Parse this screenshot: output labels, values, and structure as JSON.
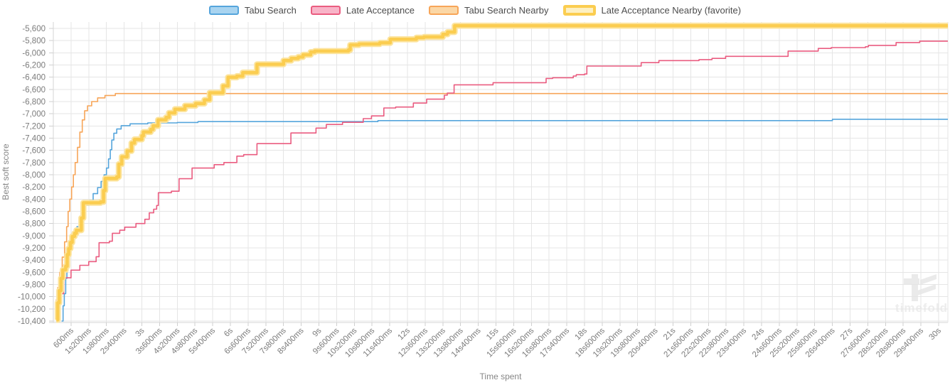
{
  "watermark": {
    "text": "timefold"
  },
  "chart_data": {
    "type": "line",
    "step_mode": "after",
    "title": "",
    "xlabel": "Time spent",
    "ylabel": "Best soft score",
    "legend_position": "top",
    "grid": true,
    "x_axis": {
      "min_s": 0,
      "max_s": 30,
      "tick_interval_s": 0.6,
      "tick_labels": [
        "600ms",
        "1s200ms",
        "1s800ms",
        "2s400ms",
        "3s",
        "3s600ms",
        "4s200ms",
        "4s800ms",
        "5s400ms",
        "6s",
        "6s600ms",
        "7s200ms",
        "7s800ms",
        "8s400ms",
        "9s",
        "9s600ms",
        "10s200ms",
        "10s800ms",
        "11s400ms",
        "12s",
        "12s600ms",
        "13s200ms",
        "13s800ms",
        "14s400ms",
        "15s",
        "15s600ms",
        "16s200ms",
        "16s800ms",
        "17s400ms",
        "18s",
        "18s600ms",
        "19s200ms",
        "19s800ms",
        "20s400ms",
        "21s",
        "21s600ms",
        "22s200ms",
        "22s800ms",
        "23s400ms",
        "24s",
        "24s600ms",
        "25s200ms",
        "25s800ms",
        "26s400ms",
        "27s",
        "27s600ms",
        "28s200ms",
        "28s800ms",
        "29s400ms",
        "30s"
      ]
    },
    "y_axis": {
      "min": -10400,
      "max": -5600,
      "tick_step": 200,
      "tick_labels": [
        "-5,600",
        "-5,800",
        "-6,000",
        "-6,200",
        "-6,400",
        "-6,600",
        "-6,800",
        "-7,000",
        "-7,200",
        "-7,400",
        "-7,600",
        "-7,800",
        "-8,000",
        "-8,200",
        "-8,400",
        "-8,600",
        "-8,800",
        "-9,000",
        "-9,200",
        "-9,400",
        "-9,600",
        "-9,800",
        "-10,000",
        "-10,200",
        "-10,400"
      ]
    },
    "grid_color": "#e5e5e5",
    "axis_border_color": "#d6d6d6",
    "series": [
      {
        "name": "Tabu Search",
        "color": "#55a5dc",
        "fill": "#a9d4f0",
        "width": 1.6,
        "favorite": false,
        "points": [
          [
            0.28,
            -10400
          ],
          [
            0.33,
            -10150
          ],
          [
            0.37,
            -9950
          ],
          [
            0.42,
            -9700
          ],
          [
            0.46,
            -9450
          ],
          [
            0.5,
            -9250
          ],
          [
            0.55,
            -9150
          ],
          [
            0.62,
            -9050
          ],
          [
            0.7,
            -8950
          ],
          [
            0.8,
            -8850
          ],
          [
            0.9,
            -8720
          ],
          [
            1.0,
            -8600
          ],
          [
            1.1,
            -8500
          ],
          [
            1.22,
            -8420
          ],
          [
            1.35,
            -8310
          ],
          [
            1.5,
            -8210
          ],
          [
            1.62,
            -8110
          ],
          [
            1.72,
            -8000
          ],
          [
            1.8,
            -7890
          ],
          [
            1.87,
            -7740
          ],
          [
            1.93,
            -7590
          ],
          [
            1.98,
            -7430
          ],
          [
            2.05,
            -7320
          ],
          [
            2.15,
            -7250
          ],
          [
            2.3,
            -7195
          ],
          [
            2.6,
            -7165
          ],
          [
            3.2,
            -7150
          ],
          [
            4.2,
            -7142
          ],
          [
            4.9,
            -7128
          ],
          [
            11.0,
            -7112
          ],
          [
            26.4,
            -7090
          ]
        ]
      },
      {
        "name": "Late Acceptance",
        "color": "#ea5c80",
        "fill": "#f8b4c8",
        "width": 1.6,
        "favorite": false,
        "points": [
          [
            0.12,
            -10350
          ],
          [
            0.17,
            -10060
          ],
          [
            0.24,
            -9950
          ],
          [
            0.35,
            -9690
          ],
          [
            0.6,
            -9565
          ],
          [
            0.9,
            -9485
          ],
          [
            1.2,
            -9425
          ],
          [
            1.45,
            -9345
          ],
          [
            1.55,
            -9115
          ],
          [
            1.9,
            -9090
          ],
          [
            2.0,
            -8960
          ],
          [
            2.25,
            -8910
          ],
          [
            2.42,
            -8860
          ],
          [
            2.8,
            -8800
          ],
          [
            3.1,
            -8730
          ],
          [
            3.25,
            -8625
          ],
          [
            3.4,
            -8565
          ],
          [
            3.5,
            -8505
          ],
          [
            3.56,
            -8295
          ],
          [
            4.0,
            -8270
          ],
          [
            4.26,
            -8065
          ],
          [
            4.7,
            -7890
          ],
          [
            5.45,
            -7835
          ],
          [
            5.78,
            -7800
          ],
          [
            6.22,
            -7695
          ],
          [
            6.45,
            -7670
          ],
          [
            6.9,
            -7490
          ],
          [
            8.05,
            -7315
          ],
          [
            8.9,
            -7235
          ],
          [
            9.25,
            -7175
          ],
          [
            9.8,
            -7140
          ],
          [
            10.5,
            -7080
          ],
          [
            10.78,
            -7035
          ],
          [
            11.2,
            -6905
          ],
          [
            11.6,
            -6890
          ],
          [
            12.2,
            -6825
          ],
          [
            12.65,
            -6760
          ],
          [
            13.25,
            -6695
          ],
          [
            13.35,
            -6660
          ],
          [
            13.58,
            -6525
          ],
          [
            14.9,
            -6490
          ],
          [
            16.7,
            -6420
          ],
          [
            16.92,
            -6408
          ],
          [
            17.62,
            -6380
          ],
          [
            17.72,
            -6360
          ],
          [
            18.0,
            -6348
          ],
          [
            18.08,
            -6218
          ],
          [
            19.92,
            -6162
          ],
          [
            20.52,
            -6128
          ],
          [
            21.88,
            -6112
          ],
          [
            22.32,
            -6092
          ],
          [
            22.78,
            -6058
          ],
          [
            24.9,
            -5972
          ],
          [
            25.92,
            -5928
          ],
          [
            26.36,
            -5914
          ],
          [
            27.52,
            -5900
          ],
          [
            27.62,
            -5878
          ],
          [
            28.56,
            -5832
          ],
          [
            29.36,
            -5808
          ]
        ]
      },
      {
        "name": "Tabu Search Nearby",
        "color": "#f7a558",
        "fill": "#fbd7a6",
        "width": 1.6,
        "favorite": false,
        "points": [
          [
            0.06,
            -10350
          ],
          [
            0.1,
            -10050
          ],
          [
            0.15,
            -9850
          ],
          [
            0.22,
            -9600
          ],
          [
            0.3,
            -9350
          ],
          [
            0.38,
            -9100
          ],
          [
            0.45,
            -8850
          ],
          [
            0.5,
            -8600
          ],
          [
            0.56,
            -8400
          ],
          [
            0.62,
            -8200
          ],
          [
            0.68,
            -8000
          ],
          [
            0.74,
            -7800
          ],
          [
            0.82,
            -7550
          ],
          [
            0.9,
            -7300
          ],
          [
            0.98,
            -7100
          ],
          [
            1.06,
            -6950
          ],
          [
            1.16,
            -6870
          ],
          [
            1.3,
            -6800
          ],
          [
            1.5,
            -6740
          ],
          [
            1.75,
            -6700
          ],
          [
            2.1,
            -6668
          ]
        ]
      },
      {
        "name": "Late Acceptance Nearby (favorite)",
        "color": "#fbcd50",
        "halo": "#fce49e",
        "fill": "#fdf0c2",
        "width": 4.5,
        "favorite": true,
        "points": [
          [
            0.1,
            -10380
          ],
          [
            0.15,
            -10100
          ],
          [
            0.2,
            -9900
          ],
          [
            0.26,
            -9700
          ],
          [
            0.32,
            -9560
          ],
          [
            0.42,
            -9500
          ],
          [
            0.47,
            -9310
          ],
          [
            0.52,
            -9210
          ],
          [
            0.58,
            -9110
          ],
          [
            0.64,
            -9010
          ],
          [
            0.72,
            -8960
          ],
          [
            0.78,
            -8910
          ],
          [
            0.95,
            -8710
          ],
          [
            1.02,
            -8460
          ],
          [
            1.6,
            -8445
          ],
          [
            1.7,
            -8260
          ],
          [
            1.76,
            -8060
          ],
          [
            2.15,
            -8035
          ],
          [
            2.22,
            -7825
          ],
          [
            2.32,
            -7705
          ],
          [
            2.5,
            -7610
          ],
          [
            2.65,
            -7480
          ],
          [
            2.75,
            -7420
          ],
          [
            3.0,
            -7360
          ],
          [
            3.05,
            -7300
          ],
          [
            3.3,
            -7255
          ],
          [
            3.38,
            -7200
          ],
          [
            3.55,
            -7100
          ],
          [
            3.82,
            -7060
          ],
          [
            3.92,
            -6985
          ],
          [
            4.12,
            -6925
          ],
          [
            4.46,
            -6868
          ],
          [
            4.82,
            -6832
          ],
          [
            5.12,
            -6772
          ],
          [
            5.3,
            -6655
          ],
          [
            5.75,
            -6542
          ],
          [
            5.92,
            -6402
          ],
          [
            6.22,
            -6382
          ],
          [
            6.42,
            -6325
          ],
          [
            6.9,
            -6188
          ],
          [
            7.8,
            -6128
          ],
          [
            8.06,
            -6092
          ],
          [
            8.3,
            -6068
          ],
          [
            8.46,
            -6032
          ],
          [
            8.72,
            -5988
          ],
          [
            8.86,
            -5972
          ],
          [
            10.0,
            -5952
          ],
          [
            10.06,
            -5872
          ],
          [
            10.36,
            -5856
          ],
          [
            11.06,
            -5836
          ],
          [
            11.42,
            -5778
          ],
          [
            12.3,
            -5752
          ],
          [
            12.56,
            -5740
          ],
          [
            13.2,
            -5696
          ],
          [
            13.36,
            -5660
          ],
          [
            13.6,
            -5556
          ]
        ]
      }
    ]
  }
}
